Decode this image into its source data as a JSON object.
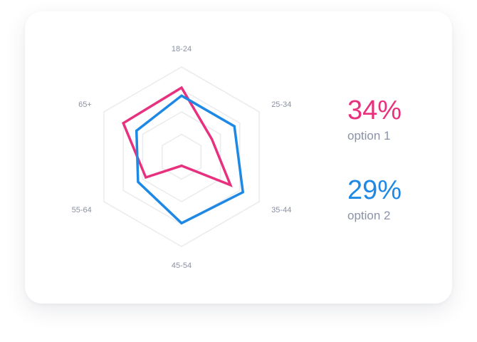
{
  "chart_data": {
    "type": "radar",
    "axes": [
      "18-24",
      "25-34",
      "35-44",
      "45-54",
      "55-64",
      "65+"
    ],
    "max": 100,
    "grid_levels": [
      25,
      50,
      75,
      100
    ],
    "series": [
      {
        "name": "option 1",
        "color": "#e8317e",
        "values": [
          77,
          39,
          63,
          10,
          46,
          75
        ]
      },
      {
        "name": "option 2",
        "color": "#1e88e5",
        "values": [
          68,
          68,
          79,
          74,
          56,
          58
        ]
      }
    ]
  },
  "stats": [
    {
      "value": "34%",
      "label": "option 1",
      "color": "#e8317e"
    },
    {
      "value": "29%",
      "label": "option 2",
      "color": "#1e88e5"
    }
  ]
}
